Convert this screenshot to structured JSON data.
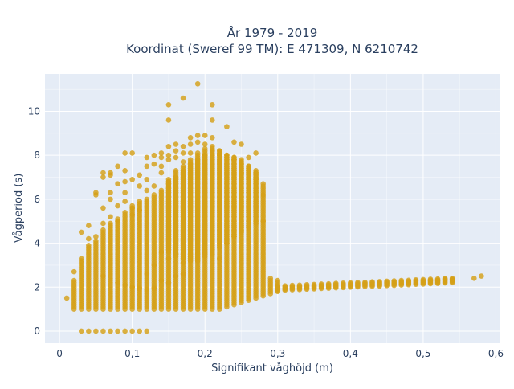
{
  "chart_data": {
    "type": "scatter",
    "title_line1": "År 1979 - 2019",
    "title_line2": "Koordinat (Sweref 99 TM): E 471309, N 6210742",
    "xlabel": "Signifikant våghöjd (m)",
    "ylabel": "Vågperiod (s)",
    "xlim": [
      -0.02,
      0.605
    ],
    "ylim": [
      -0.55,
      11.7
    ],
    "x_ticks": [
      0,
      0.1,
      0.2,
      0.3,
      0.4,
      0.5,
      0.6
    ],
    "x_tick_labels": [
      "0",
      "0,1",
      "0,2",
      "0,3",
      "0,4",
      "0,5",
      "0,6"
    ],
    "y_ticks": [
      0,
      2,
      4,
      6,
      8,
      10
    ],
    "y_tick_labels": [
      "0",
      "2",
      "4",
      "6",
      "8",
      "10"
    ],
    "grid": true,
    "legend": "none",
    "colors": {
      "marker": "#d4a017",
      "plot_bg": "#e5ecf6",
      "grid": "#ffffff"
    },
    "series": [
      {
        "points": [
          [
            0.01,
            1.5
          ],
          [
            0.02,
            2.7
          ],
          [
            0.03,
            4.5
          ],
          [
            0.03,
            3.3
          ],
          [
            0.04,
            4.8
          ],
          [
            0.04,
            4.2
          ],
          [
            0.05,
            6.3
          ],
          [
            0.05,
            6.2
          ],
          [
            0.05,
            4.3
          ],
          [
            0.06,
            7.0
          ],
          [
            0.06,
            7.2
          ],
          [
            0.06,
            4.9
          ],
          [
            0.06,
            5.6
          ],
          [
            0.07,
            7.1
          ],
          [
            0.07,
            7.2
          ],
          [
            0.07,
            6.3
          ],
          [
            0.07,
            5.2
          ],
          [
            0.08,
            7.5
          ],
          [
            0.08,
            5.7
          ],
          [
            0.08,
            5.0
          ],
          [
            0.09,
            8.1
          ],
          [
            0.09,
            7.3
          ],
          [
            0.09,
            6.8
          ],
          [
            0.09,
            5.9
          ],
          [
            0.1,
            8.1
          ],
          [
            0.1,
            5.6
          ],
          [
            0.1,
            5.3
          ],
          [
            0.11,
            6.6
          ],
          [
            0.11,
            5.5
          ],
          [
            0.12,
            7.9
          ],
          [
            0.12,
            6.9
          ],
          [
            0.12,
            6.4
          ],
          [
            0.13,
            8.0
          ],
          [
            0.13,
            6.6
          ],
          [
            0.14,
            8.1
          ],
          [
            0.14,
            7.9
          ],
          [
            0.14,
            7.5
          ],
          [
            0.15,
            10.3
          ],
          [
            0.15,
            9.6
          ],
          [
            0.15,
            8.4
          ],
          [
            0.15,
            8.0
          ],
          [
            0.16,
            8.5
          ],
          [
            0.16,
            8.2
          ],
          [
            0.17,
            10.6
          ],
          [
            0.17,
            8.4
          ],
          [
            0.17,
            8.1
          ],
          [
            0.18,
            8.5
          ],
          [
            0.18,
            8.8
          ],
          [
            0.19,
            11.25
          ],
          [
            0.19,
            8.9
          ],
          [
            0.19,
            8.6
          ],
          [
            0.2,
            8.9
          ],
          [
            0.2,
            8.5
          ],
          [
            0.21,
            10.3
          ],
          [
            0.21,
            9.6
          ],
          [
            0.21,
            8.8
          ],
          [
            0.22,
            8.2
          ],
          [
            0.22,
            8.0
          ],
          [
            0.23,
            9.3
          ],
          [
            0.23,
            7.9
          ],
          [
            0.24,
            8.6
          ],
          [
            0.25,
            8.5
          ],
          [
            0.25,
            7.8
          ],
          [
            0.26,
            7.9
          ],
          [
            0.27,
            8.1
          ],
          [
            0.27,
            7.3
          ],
          [
            0.28,
            6.7
          ],
          [
            0.28,
            6.2
          ],
          [
            0.08,
            6.7
          ],
          [
            0.07,
            6.0
          ],
          [
            0.09,
            6.3
          ],
          [
            0.1,
            6.9
          ],
          [
            0.11,
            7.1
          ],
          [
            0.12,
            7.5
          ],
          [
            0.13,
            7.6
          ],
          [
            0.14,
            7.2
          ],
          [
            0.15,
            7.8
          ],
          [
            0.16,
            7.9
          ],
          [
            0.17,
            7.7
          ],
          [
            0.18,
            8.1
          ],
          [
            0.2,
            8.0
          ],
          [
            0.21,
            8.2
          ],
          [
            0.22,
            7.7
          ],
          [
            0.23,
            7.5
          ],
          [
            0.24,
            7.8
          ],
          [
            0.25,
            7.2
          ],
          [
            0.26,
            7.3
          ],
          [
            0.27,
            6.9
          ],
          [
            0.14,
            3.6
          ],
          [
            0.15,
            3.3
          ],
          [
            0.16,
            3.5
          ],
          [
            0.17,
            3.1
          ],
          [
            0.18,
            3.4
          ],
          [
            0.19,
            3.2
          ],
          [
            0.2,
            3.6
          ],
          [
            0.21,
            3.7
          ],
          [
            0.22,
            3.3
          ],
          [
            0.23,
            4.0
          ],
          [
            0.24,
            4.3
          ],
          [
            0.25,
            4.5
          ],
          [
            0.26,
            4.7
          ],
          [
            0.27,
            4.9
          ],
          [
            0.28,
            5.0
          ],
          [
            0.12,
            2.6
          ],
          [
            0.14,
            2.3
          ],
          [
            0.15,
            2.2
          ],
          [
            0.16,
            2.5
          ],
          [
            0.17,
            2.6
          ],
          [
            0.13,
            3.0
          ],
          [
            0.1,
            2.0
          ],
          [
            0.11,
            1.95
          ],
          [
            0.12,
            1.9
          ],
          [
            0.13,
            1.95
          ],
          [
            0.09,
            2.1
          ],
          [
            0.08,
            2.2
          ],
          [
            0.06,
            2.5
          ],
          [
            0.57,
            2.4
          ],
          [
            0.58,
            2.5
          ],
          [
            0.54,
            2.35
          ],
          [
            0.53,
            2.35
          ],
          [
            0.52,
            2.3
          ],
          [
            0.51,
            2.3
          ],
          [
            0.03,
            0.0
          ],
          [
            0.04,
            0.0
          ],
          [
            0.05,
            0.0
          ],
          [
            0.06,
            0.0
          ],
          [
            0.07,
            0.0
          ],
          [
            0.08,
            0.0
          ],
          [
            0.09,
            0.0
          ],
          [
            0.1,
            0.0
          ],
          [
            0.11,
            0.0
          ],
          [
            0.12,
            0.0
          ]
        ],
        "columns": [
          [
            0.02,
            1.0,
            2.3
          ],
          [
            0.03,
            1.0,
            3.2
          ],
          [
            0.04,
            1.0,
            3.9
          ],
          [
            0.05,
            1.0,
            4.1
          ],
          [
            0.06,
            1.0,
            4.6
          ],
          [
            0.07,
            1.0,
            4.9
          ],
          [
            0.08,
            1.0,
            5.1
          ],
          [
            0.09,
            1.0,
            5.4
          ],
          [
            0.1,
            1.0,
            5.7
          ],
          [
            0.11,
            1.0,
            5.9
          ],
          [
            0.12,
            1.0,
            6.0
          ],
          [
            0.13,
            1.0,
            6.2
          ],
          [
            0.14,
            1.0,
            6.4
          ],
          [
            0.15,
            1.0,
            6.8
          ],
          [
            0.16,
            1.0,
            7.0
          ],
          [
            0.17,
            1.0,
            7.3
          ],
          [
            0.18,
            1.0,
            7.6
          ],
          [
            0.19,
            1.0,
            7.8
          ],
          [
            0.2,
            1.0,
            8.0
          ],
          [
            0.21,
            1.0,
            8.0
          ],
          [
            0.22,
            1.0,
            8.1
          ],
          [
            0.23,
            1.1,
            8.0
          ],
          [
            0.24,
            1.2,
            7.9
          ],
          [
            0.25,
            1.3,
            7.7
          ],
          [
            0.26,
            1.4,
            7.5
          ],
          [
            0.27,
            1.5,
            7.2
          ],
          [
            0.28,
            1.6,
            6.6
          ],
          [
            0.29,
            1.7,
            2.4
          ],
          [
            0.3,
            1.8,
            2.3
          ],
          [
            0.15,
            3.6,
            6.9
          ],
          [
            0.16,
            3.4,
            7.3
          ],
          [
            0.17,
            3.3,
            7.5
          ],
          [
            0.18,
            3.2,
            7.8
          ],
          [
            0.19,
            3.3,
            8.1
          ],
          [
            0.2,
            3.4,
            8.3
          ],
          [
            0.21,
            3.5,
            8.4
          ],
          [
            0.22,
            3.8,
            8.2
          ],
          [
            0.23,
            4.0,
            8.0
          ],
          [
            0.24,
            4.3,
            7.9
          ],
          [
            0.25,
            4.6,
            7.7
          ],
          [
            0.26,
            4.8,
            7.5
          ],
          [
            0.27,
            5.0,
            7.2
          ]
        ],
        "band": {
          "x_from": 0.3,
          "x_to": 0.54,
          "step": 0.01,
          "lower_start": 1.85,
          "lower_end": 2.2,
          "upper_start": 2.05,
          "upper_end": 2.4
        }
      }
    ]
  }
}
